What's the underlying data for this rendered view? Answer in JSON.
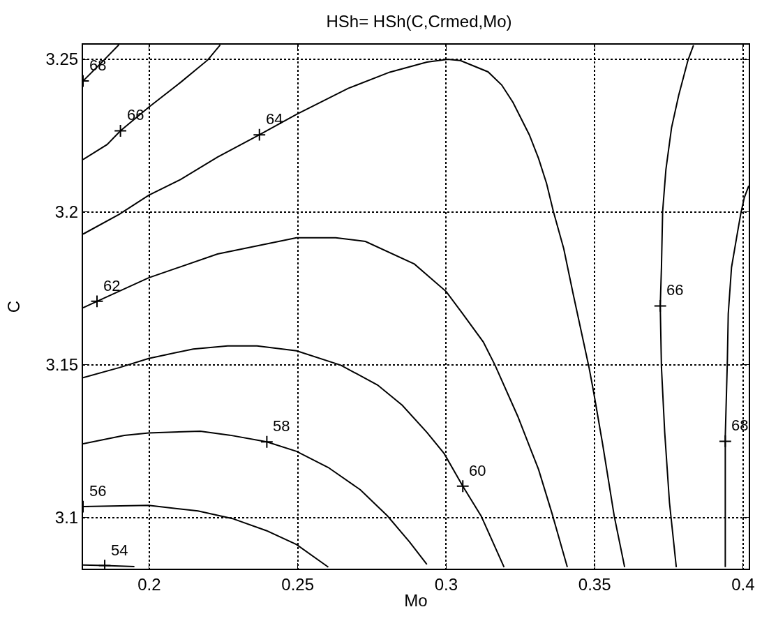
{
  "chart_data": {
    "type": "line",
    "title": "HSh= HSh(C,Crmed,Mo)",
    "xlabel": "Mo",
    "ylabel": "C",
    "xlim": [
      0.1777,
      0.4019
    ],
    "ylim": [
      3.0833,
      3.2548
    ],
    "xticks": [
      0.2,
      0.25,
      0.3,
      0.35,
      0.4
    ],
    "yticks": [
      3.1,
      3.15,
      3.2,
      3.25
    ],
    "grid": true,
    "marker": "none",
    "line_style": "solid",
    "series": [
      {
        "color": "#000000",
        "x": [
          0.1777,
          0.184,
          0.1898
        ],
        "values": [
          3.2429,
          3.249,
          3.2548
        ]
      },
      {
        "color": "#000000",
        "x": [
          0.1777,
          0.1858,
          0.1903,
          0.1998,
          0.2106,
          0.2197,
          0.2239
        ],
        "values": [
          3.2172,
          3.2221,
          3.2266,
          3.2343,
          3.2425,
          3.2498,
          3.2547
        ]
      },
      {
        "color": "#000000",
        "x": [
          0.1777,
          0.1899,
          0.1998,
          0.2106,
          0.223,
          0.2371,
          0.2496,
          0.267,
          0.281,
          0.2935,
          0.3005,
          0.3048,
          0.3141,
          0.3187,
          0.3225,
          0.328,
          0.3311,
          0.3338,
          0.3361,
          0.3396,
          0.3427,
          0.3481,
          0.3497,
          0.3527,
          0.3566,
          0.3601
        ],
        "values": [
          3.1928,
          3.1993,
          3.2055,
          3.2107,
          3.218,
          3.2253,
          3.232,
          3.2405,
          3.2458,
          3.2491,
          3.25,
          3.2496,
          3.2459,
          3.2416,
          3.2359,
          3.2253,
          3.2176,
          3.2094,
          3.2002,
          3.188,
          3.1735,
          3.1492,
          3.1409,
          3.124,
          3.1005,
          3.0838
        ]
      },
      {
        "color": "#000000",
        "x": [
          0.1777,
          0.1824,
          0.1998,
          0.223,
          0.2496,
          0.2628,
          0.2728,
          0.2893,
          0.3,
          0.3056,
          0.3125,
          0.3164,
          0.3241,
          0.3311,
          0.3357,
          0.3408
        ],
        "values": [
          3.1687,
          3.1708,
          3.1785,
          3.1863,
          3.1916,
          3.1916,
          3.1904,
          3.183,
          3.174,
          3.1667,
          3.1575,
          3.15,
          3.1332,
          3.1158,
          3.1012,
          3.0838
        ]
      },
      {
        "color": "#000000",
        "x": [
          0.1777,
          0.1899,
          0.1998,
          0.2148,
          0.2264,
          0.2363,
          0.2496,
          0.2645,
          0.2769,
          0.2852,
          0.2935,
          0.2993,
          0.3056,
          0.3118,
          0.3195
        ],
        "values": [
          3.1458,
          3.1491,
          3.1521,
          3.1552,
          3.1562,
          3.1562,
          3.1546,
          3.1499,
          3.1434,
          3.1368,
          3.1279,
          3.121,
          3.1103,
          3.1005,
          3.0838
        ]
      },
      {
        "color": "#000000",
        "x": [
          0.1777,
          0.1916,
          0.1998,
          0.2172,
          0.2271,
          0.2396,
          0.2496,
          0.2603,
          0.2711,
          0.2802,
          0.2877,
          0.2935
        ],
        "values": [
          3.1242,
          3.1269,
          3.1277,
          3.1283,
          3.127,
          3.1248,
          3.1217,
          3.1164,
          3.1091,
          3.1006,
          3.092,
          3.0847
        ]
      },
      {
        "color": "#000000",
        "x": [
          0.1777,
          0.1998,
          0.2164,
          0.228,
          0.2396,
          0.2496,
          0.2603
        ],
        "values": [
          3.1036,
          3.104,
          3.1022,
          3.0997,
          3.0957,
          3.0912,
          3.0838
        ]
      },
      {
        "color": "#000000",
        "x": [
          0.1777,
          0.185,
          0.195
        ],
        "values": [
          3.0845,
          3.0843,
          3.084
        ]
      },
      {
        "color": "#000000",
        "x": [
          0.3833,
          0.3814,
          0.3783,
          0.3759,
          0.374,
          0.3729,
          0.3725,
          0.3721,
          0.3725,
          0.3736,
          0.3752,
          0.3775
        ],
        "values": [
          3.2546,
          3.2496,
          3.2382,
          3.2276,
          3.2139,
          3.2002,
          3.1819,
          3.1693,
          3.1492,
          3.1279,
          3.105,
          3.0838
        ]
      },
      {
        "color": "#000000",
        "x": [
          0.4019,
          0.4004,
          0.3992,
          0.3981,
          0.3961,
          0.395,
          0.3947,
          0.394,
          0.394,
          0.394
        ],
        "values": [
          3.2086,
          3.2047,
          3.1994,
          3.1933,
          3.1819,
          3.1667,
          3.1514,
          3.1267,
          3.1084,
          3.0838
        ]
      }
    ],
    "annotations": [
      {
        "text": "68",
        "x": 0.1777,
        "y": 3.2429
      },
      {
        "text": "66",
        "x": 0.1903,
        "y": 3.2266
      },
      {
        "text": "64",
        "x": 0.2371,
        "y": 3.2253
      },
      {
        "text": "62",
        "x": 0.1824,
        "y": 3.1708
      },
      {
        "text": "60",
        "x": 0.3056,
        "y": 3.1103
      },
      {
        "text": "58",
        "x": 0.2396,
        "y": 3.1248
      },
      {
        "text": "56",
        "x": 0.1777,
        "y": 3.1036
      },
      {
        "text": "54",
        "x": 0.185,
        "y": 3.0843
      },
      {
        "text": "66",
        "x": 0.3721,
        "y": 3.1693
      },
      {
        "text": "68",
        "x": 0.394,
        "y": 3.125
      }
    ]
  }
}
